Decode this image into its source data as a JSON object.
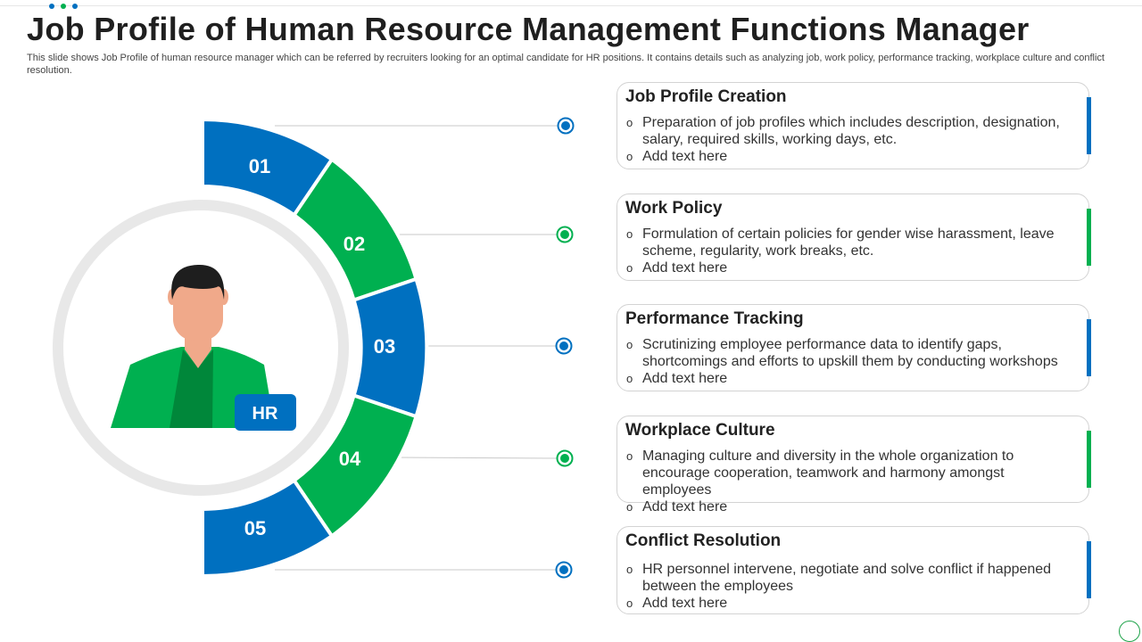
{
  "header": {
    "title": "Job Profile of Human Resource Management Functions Manager",
    "subtitle": "This slide shows Job Profile of human resource manager which can be referred by recruiters looking for an optimal candidate for HR positions. It contains details such as analyzing job, work policy, performance tracking, workplace culture and conflict resolution."
  },
  "colors": {
    "blue": "#0070c0",
    "green": "#00b050",
    "dark_green": "#00873a",
    "skin": "#f0a98a",
    "hair": "#1e1e1e",
    "ring": "#e8e8e8"
  },
  "center": {
    "badge_label": "HR",
    "icon": "businessman-avatar-icon"
  },
  "segments": [
    {
      "number": "01",
      "color": "blue"
    },
    {
      "number": "02",
      "color": "green"
    },
    {
      "number": "03",
      "color": "blue"
    },
    {
      "number": "04",
      "color": "green"
    },
    {
      "number": "05",
      "color": "blue"
    }
  ],
  "cards": [
    {
      "title": "Job Profile Creation",
      "color": "blue",
      "bullets": [
        "Preparation of job profiles which includes description, designation, salary, required skills, working days, etc.",
        "Add text here"
      ]
    },
    {
      "title": "Work Policy",
      "color": "green",
      "bullets": [
        "Formulation of certain policies for gender wise harassment, leave scheme, regularity, work breaks, etc.",
        "Add text here"
      ]
    },
    {
      "title": "Performance Tracking",
      "color": "blue",
      "bullets": [
        "Scrutinizing employee performance data to identify gaps, shortcomings and efforts to upskill them by conducting workshops",
        "Add text here"
      ]
    },
    {
      "title": "Workplace Culture",
      "color": "green",
      "bullets": [
        "Managing culture and diversity in the whole organization to encourage cooperation, teamwork and harmony amongst employees",
        "Add text here"
      ]
    },
    {
      "title": "Conflict Resolution",
      "color": "blue",
      "bullets": [
        "HR personnel intervene, negotiate and solve conflict if happened between the employees",
        "Add text here"
      ]
    }
  ]
}
